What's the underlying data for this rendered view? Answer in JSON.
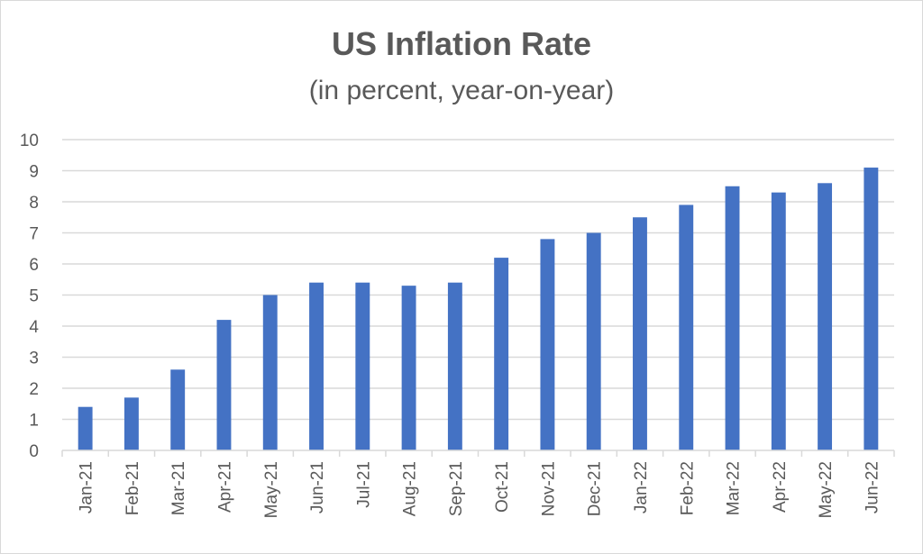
{
  "chart_data": {
    "type": "bar",
    "title": "US Inflation Rate",
    "subtitle": "(in percent, year-on-year)",
    "xlabel": "",
    "ylabel": "",
    "categories": [
      "Jan-21",
      "Feb-21",
      "Mar-21",
      "Apr-21",
      "May-21",
      "Jun-21",
      "Jul-21",
      "Aug-21",
      "Sep-21",
      "Oct-21",
      "Nov-21",
      "Dec-21",
      "Jan-22",
      "Feb-22",
      "Mar-22",
      "Apr-22",
      "May-22",
      "Jun-22"
    ],
    "values": [
      1.4,
      1.7,
      2.6,
      4.2,
      5.0,
      5.4,
      5.4,
      5.3,
      5.4,
      6.2,
      6.8,
      7.0,
      7.5,
      7.9,
      8.5,
      8.3,
      8.6,
      9.1
    ],
    "ylim": [
      0,
      10
    ],
    "yticks": [
      0,
      1,
      2,
      3,
      4,
      5,
      6,
      7,
      8,
      9,
      10
    ],
    "grid": true,
    "legend": "none",
    "bar_color": "#4472c4",
    "grid_color": "#d9d9d9",
    "text_color": "#595959"
  }
}
